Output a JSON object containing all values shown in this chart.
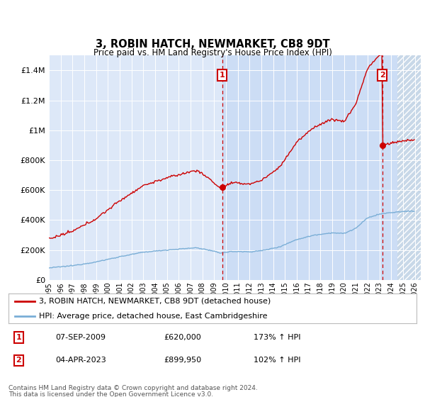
{
  "title": "3, ROBIN HATCH, NEWMARKET, CB8 9DT",
  "subtitle": "Price paid vs. HM Land Registry's House Price Index (HPI)",
  "yticks": [
    0,
    200000,
    400000,
    600000,
    800000,
    1000000,
    1200000,
    1400000
  ],
  "ylim": [
    0,
    1500000
  ],
  "xlim": [
    1995.0,
    2026.5
  ],
  "red_color": "#cc0000",
  "blue_color": "#7aaed6",
  "background_color": "#dde8f8",
  "highlight_color": "#ccddf5",
  "hatch_bg_color": "#c8d8e8",
  "legend_label_red": "3, ROBIN HATCH, NEWMARKET, CB8 9DT (detached house)",
  "legend_label_blue": "HPI: Average price, detached house, East Cambridgeshire",
  "transaction1_date": "07-SEP-2009",
  "transaction1_price": "£620,000",
  "transaction1_hpi": "173% ↑ HPI",
  "transaction2_date": "04-APR-2023",
  "transaction2_price": "£899,950",
  "transaction2_hpi": "102% ↑ HPI",
  "t1": 2009.67,
  "t2": 2023.25,
  "price1": 620000,
  "price2": 899950,
  "footnote1": "Contains HM Land Registry data © Crown copyright and database right 2024.",
  "footnote2": "This data is licensed under the Open Government Licence v3.0.",
  "fig_width": 6.0,
  "fig_height": 5.6,
  "dpi": 100
}
